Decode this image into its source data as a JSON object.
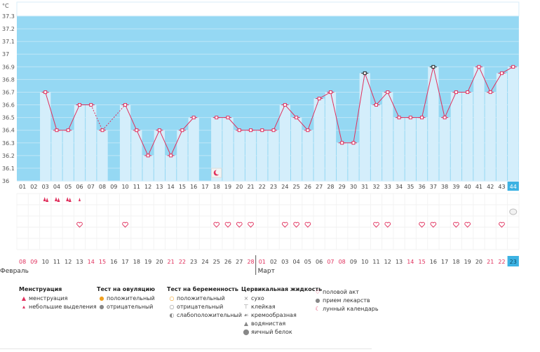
{
  "chart_data": {
    "type": "bar+line",
    "ylabel": "°C",
    "ylim": [
      36.0,
      37.3
    ],
    "yticks": [
      "37.3",
      "37.2",
      "37.1",
      "37",
      "36.9",
      "36.8",
      "36.7",
      "36.6",
      "36.5",
      "36.4",
      "36.3",
      "36.2",
      "36.1",
      "36"
    ],
    "cycle_days": [
      "01",
      "02",
      "03",
      "04",
      "05",
      "06",
      "07",
      "08",
      "09",
      "10",
      "11",
      "12",
      "13",
      "14",
      "15",
      "16",
      "17",
      "18",
      "19",
      "20",
      "21",
      "22",
      "23",
      "24",
      "25",
      "26",
      "27",
      "28",
      "29",
      "30",
      "31",
      "32",
      "33",
      "34",
      "35",
      "36",
      "37",
      "38",
      "39",
      "40",
      "41",
      "42",
      "43",
      "44"
    ],
    "values": [
      null,
      null,
      36.7,
      36.4,
      36.4,
      36.6,
      36.6,
      36.4,
      null,
      36.6,
      36.4,
      36.2,
      36.4,
      36.2,
      36.4,
      36.5,
      null,
      36.5,
      36.5,
      36.4,
      36.4,
      36.4,
      36.4,
      36.6,
      36.5,
      36.4,
      36.65,
      36.7,
      36.3,
      36.3,
      36.85,
      36.6,
      36.7,
      36.5,
      36.5,
      36.5,
      36.9,
      36.5,
      36.7,
      36.7,
      36.9,
      36.7,
      36.85,
      36.9
    ],
    "line_style": [
      "none",
      "none",
      "solid",
      "solid",
      "solid",
      "solid",
      "solid",
      "dashed",
      "dashed",
      "solid",
      "solid",
      "solid",
      "solid",
      "solid",
      "solid",
      "solid",
      "none",
      "solid",
      "solid",
      "solid",
      "solid",
      "solid",
      "solid",
      "solid",
      "solid",
      "solid",
      "solid",
      "solid",
      "solid",
      "solid",
      "solid",
      "solid",
      "solid",
      "solid",
      "solid",
      "solid",
      "solid",
      "solid",
      "solid",
      "solid",
      "solid",
      "solid",
      "solid",
      "solid"
    ],
    "black_markers_days": [
      "31",
      "37"
    ],
    "moon_day": "18",
    "current_day": "44",
    "menstruation": [
      {
        "day": "03",
        "kind": "heavy"
      },
      {
        "day": "04",
        "kind": "heavy"
      },
      {
        "day": "05",
        "kind": "heavy"
      },
      {
        "day": "06",
        "kind": "light"
      }
    ],
    "intercourse_days": [
      "06",
      "10",
      "18",
      "19",
      "20",
      "21",
      "24",
      "25",
      "26",
      "32",
      "33",
      "36",
      "37",
      "39",
      "40",
      "43"
    ],
    "medication_days": [
      "44"
    ],
    "dates": [
      "08",
      "09",
      "10",
      "11",
      "12",
      "13",
      "14",
      "15",
      "16",
      "17",
      "18",
      "19",
      "20",
      "21",
      "22",
      "23",
      "24",
      "25",
      "26",
      "27",
      "28",
      "01",
      "02",
      "03",
      "04",
      "05",
      "06",
      "07",
      "08",
      "09",
      "10",
      "11",
      "12",
      "13",
      "14",
      "15",
      "16",
      "17",
      "18",
      "19",
      "20",
      "21",
      "22",
      "23"
    ],
    "weekend_days": [
      "01",
      "02",
      "07",
      "08",
      "14",
      "15",
      "21",
      "22",
      "28",
      "29",
      "35",
      "36",
      "42",
      "43"
    ],
    "months": [
      {
        "label": "Февраль",
        "start_day": "01"
      },
      {
        "label": "Март",
        "start_day": "22"
      }
    ]
  },
  "colors": {
    "bg_dark": "#95d8f3",
    "bar": "#d4eefb",
    "bar_stroke": "#c2e4f7",
    "line": "#e0305d",
    "marker_stroke": "#e0305d",
    "today": "#3cb2e3",
    "weekend": "#e0305d",
    "grid": "#e8e8e8"
  },
  "legend": {
    "menstruation": {
      "title": "Менструация",
      "items": [
        "менструация",
        "небольшие выделения"
      ]
    },
    "ovulation": {
      "title": "Тест на овуляцию",
      "items": [
        "положительный",
        "отрицательный"
      ]
    },
    "pregnancy": {
      "title": "Тест на беременность",
      "items": [
        "положительный",
        "отрицательный",
        "слабоположительный"
      ]
    },
    "cervical": {
      "title": "Цервикальная жидкость",
      "items": [
        "сухо",
        "клейкая",
        "кремообразная",
        "водянистая",
        "яичный белок"
      ]
    },
    "other": {
      "title": "",
      "items": [
        "половой акт",
        "прием лекарств",
        "лунный календарь"
      ]
    }
  },
  "icons": {
    "menstruation": "drop-icon",
    "ovulation": "circle-icon",
    "pregnancy": "circle-icon",
    "cervical": [
      "cross-icon",
      "sticky-icon",
      "cream-icon",
      "water-drop-icon",
      "egg-white-icon"
    ],
    "other": [
      "heart-icon",
      "pill-icon",
      "moon-icon"
    ]
  }
}
